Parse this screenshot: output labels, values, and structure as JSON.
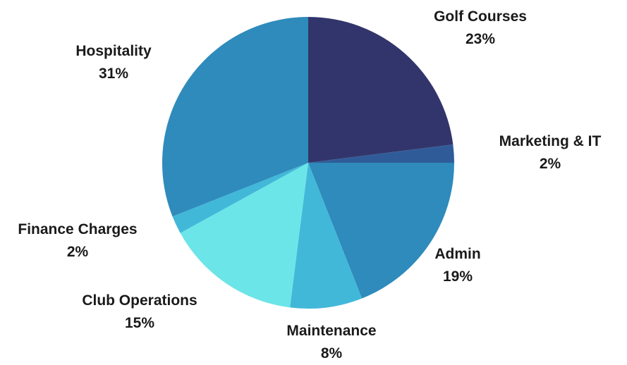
{
  "chart_data": {
    "type": "pie",
    "title": "",
    "start_angle_deg": 0,
    "direction": "clockwise",
    "legend": "none",
    "slices": [
      {
        "name": "Golf Courses",
        "value": 23,
        "label": "23%",
        "color": "#32356B"
      },
      {
        "name": "Marketing & IT",
        "value": 2,
        "label": "2%",
        "color": "#2F5C98"
      },
      {
        "name": "Admin",
        "value": 19,
        "label": "19%",
        "color": "#2E8BBB"
      },
      {
        "name": "Maintenance",
        "value": 8,
        "label": "8%",
        "color": "#42B8D9"
      },
      {
        "name": "Club Operations",
        "value": 15,
        "label": "15%",
        "color": "#6CE5E8"
      },
      {
        "name": "Finance Charges",
        "value": 2,
        "label": "2%",
        "color": "#42B8D9"
      },
      {
        "name": "Hospitality",
        "value": 31,
        "label": "31%",
        "color": "#2E8BBB"
      }
    ]
  }
}
